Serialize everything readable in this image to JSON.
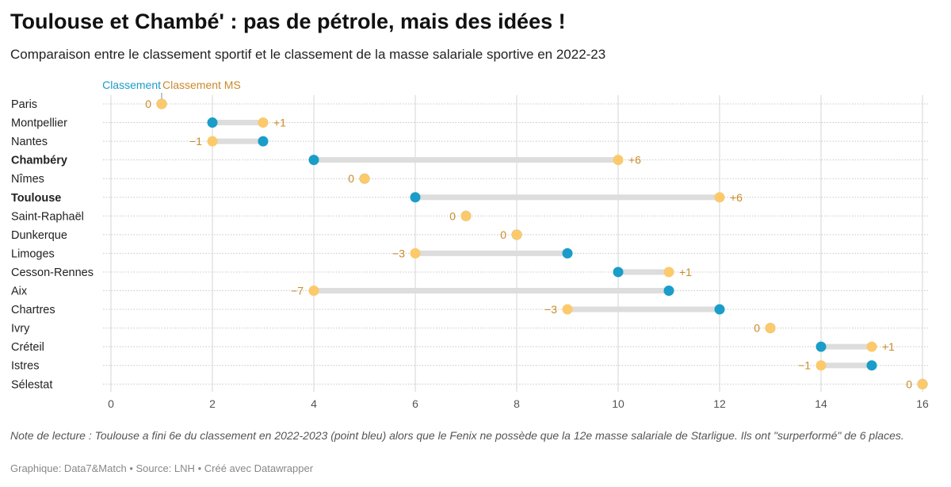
{
  "header": {
    "title": "Toulouse et Chambé' : pas de pétrole, mais des idées !",
    "subtitle": "Comparaison entre le classement sportif et le classement de la masse salariale sportive en 2022-23"
  },
  "footer": {
    "note": "Note de lecture : Toulouse a fini 6e du classement en 2022-2023 (point bleu) alors que le Fenix ne possède que la 12e masse salariale de Starligue. Ils ont \"surperformé\" de 6 places.",
    "credit_graphique": "Graphique: Data7&Match",
    "credit_source": "Source: LNH",
    "credit_tool": "Créé avec Datawrapper",
    "separator": "•"
  },
  "colors": {
    "classement": "#1a9dc9",
    "ms": "#fcc96b",
    "diff_text": "#c98a2a",
    "range_bar": "#dddddd"
  },
  "chart_data": {
    "type": "range_dot",
    "title": "Toulouse et Chambé' : pas de pétrole, mais des idées !",
    "xlim": [
      0,
      16
    ],
    "xticks": [
      0,
      2,
      4,
      6,
      8,
      10,
      12,
      14,
      16
    ],
    "legend": [
      {
        "name": "Classement",
        "color": "#1a9dc9"
      },
      {
        "name": "Classement MS",
        "color": "#fcc96b"
      }
    ],
    "rows": [
      {
        "team": "Paris",
        "classement": 1,
        "ms": 1,
        "diff": "0",
        "bold": false
      },
      {
        "team": "Montpellier",
        "classement": 2,
        "ms": 3,
        "diff": "+1",
        "bold": false
      },
      {
        "team": "Nantes",
        "classement": 3,
        "ms": 2,
        "diff": "−1",
        "bold": false
      },
      {
        "team": "Chambéry",
        "classement": 4,
        "ms": 10,
        "diff": "+6",
        "bold": true
      },
      {
        "team": "Nîmes",
        "classement": 5,
        "ms": 5,
        "diff": "0",
        "bold": false
      },
      {
        "team": "Toulouse",
        "classement": 6,
        "ms": 12,
        "diff": "+6",
        "bold": true
      },
      {
        "team": "Saint-Raphaël",
        "classement": 7,
        "ms": 7,
        "diff": "0",
        "bold": false
      },
      {
        "team": "Dunkerque",
        "classement": 8,
        "ms": 8,
        "diff": "0",
        "bold": false
      },
      {
        "team": "Limoges",
        "classement": 9,
        "ms": 6,
        "diff": "−3",
        "bold": false
      },
      {
        "team": "Cesson-Rennes",
        "classement": 10,
        "ms": 11,
        "diff": "+1",
        "bold": false
      },
      {
        "team": "Aix",
        "classement": 11,
        "ms": 4,
        "diff": "−7",
        "bold": false
      },
      {
        "team": "Chartres",
        "classement": 12,
        "ms": 9,
        "diff": "−3",
        "bold": false
      },
      {
        "team": "Ivry",
        "classement": 13,
        "ms": 13,
        "diff": "0",
        "bold": false
      },
      {
        "team": "Créteil",
        "classement": 14,
        "ms": 15,
        "diff": "+1",
        "bold": false
      },
      {
        "team": "Istres",
        "classement": 15,
        "ms": 14,
        "diff": "−1",
        "bold": false
      },
      {
        "team": "Sélestat",
        "classement": 16,
        "ms": 16,
        "diff": "0",
        "bold": false
      }
    ]
  }
}
